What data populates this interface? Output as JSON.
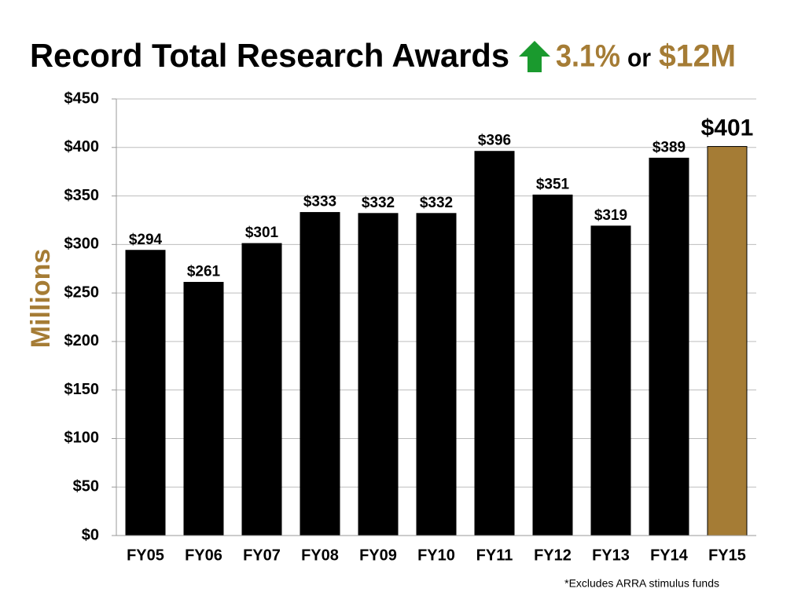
{
  "chart_data": {
    "type": "bar",
    "title": "Record Total Research Awards",
    "annotations": [
      "3.1%",
      "or",
      "$12M"
    ],
    "y_label": "Millions",
    "footnote": "*Excludes ARRA stimulus funds",
    "categories": [
      "FY05",
      "FY06",
      "FY07",
      "FY08",
      "FY09",
      "FY10",
      "FY11",
      "FY12",
      "FY13",
      "FY14",
      "FY15"
    ],
    "values": [
      294,
      261,
      301,
      333,
      332,
      332,
      396,
      351,
      319,
      389,
      401
    ],
    "value_labels": [
      "$294",
      "$261",
      "$301",
      "$333",
      "$332",
      "$332",
      "$396",
      "$351",
      "$319",
      "$389",
      "$401"
    ],
    "colors": [
      "#000000",
      "#000000",
      "#000000",
      "#000000",
      "#000000",
      "#000000",
      "#000000",
      "#000000",
      "#000000",
      "#000000",
      "#a57c35"
    ],
    "ylim": [
      0,
      450
    ],
    "yticks": [
      {
        "value": 0,
        "label": "$0"
      },
      {
        "value": 50,
        "label": "$50"
      },
      {
        "value": 100,
        "label": "$100"
      },
      {
        "value": 150,
        "label": "$150"
      },
      {
        "value": 200,
        "label": "$200"
      },
      {
        "value": 250,
        "label": "$250"
      },
      {
        "value": 300,
        "label": "$300"
      },
      {
        "value": 350,
        "label": "$350"
      },
      {
        "value": 400,
        "label": "$400"
      },
      {
        "value": 450,
        "label": "$450"
      }
    ],
    "grid": true
  }
}
